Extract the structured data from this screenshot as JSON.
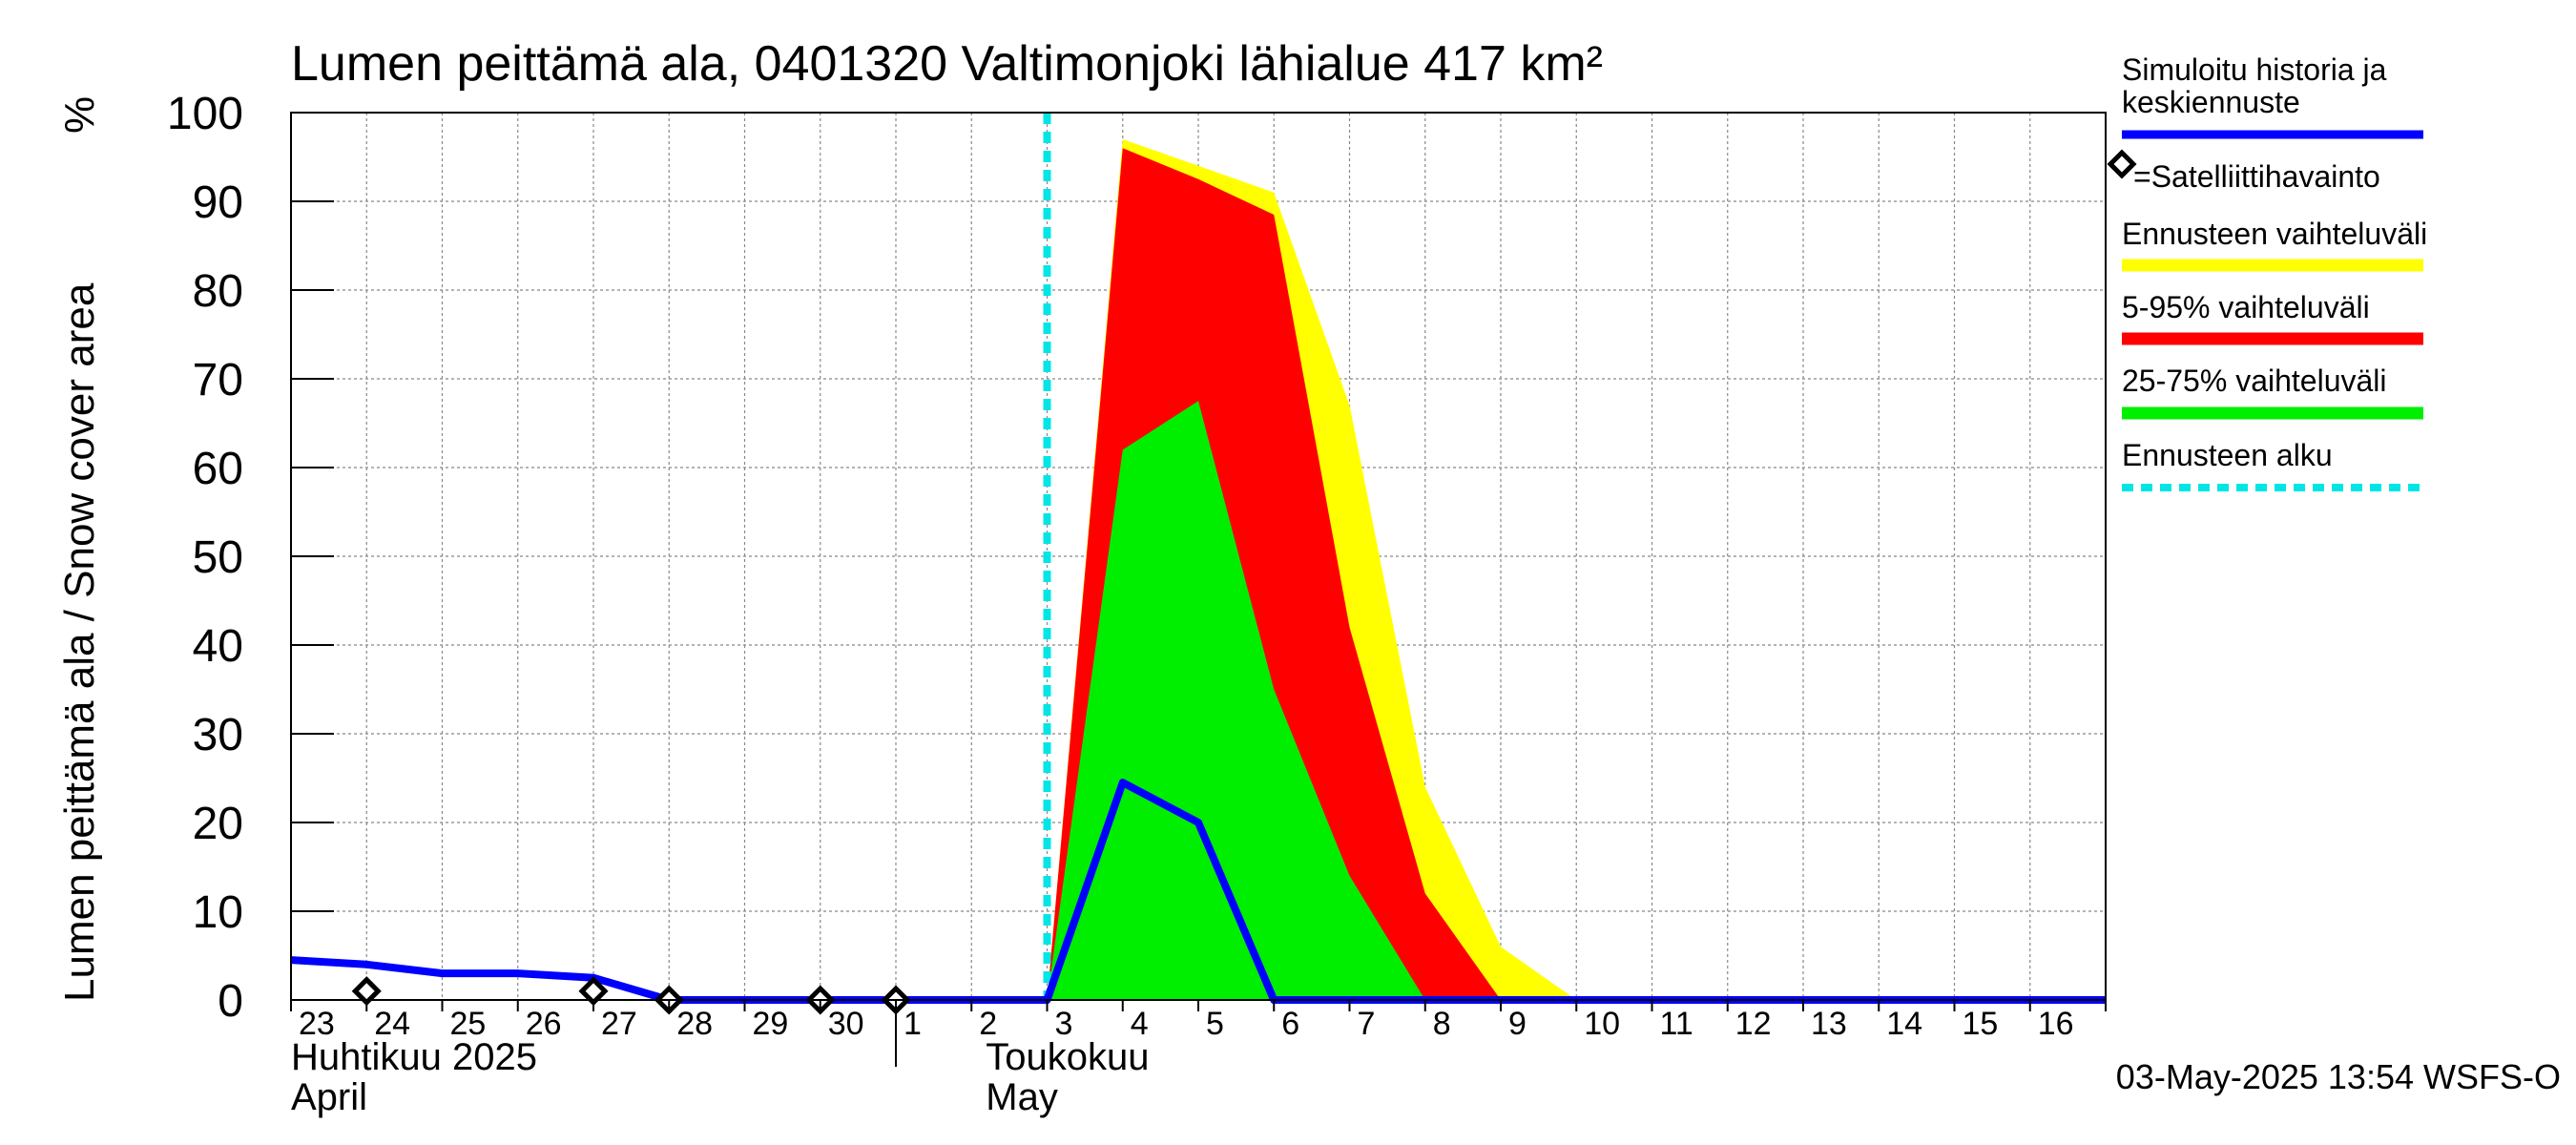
{
  "chart_data": {
    "type": "area",
    "title": "Lumen peittämä ala, 0401320 Valtimonjoki lähialue 417 km²",
    "ylabel": "Lumen peittämä ala / Snow cover area",
    "yunit": "%",
    "ylim": [
      0,
      100
    ],
    "yticks": [
      0,
      10,
      20,
      30,
      40,
      50,
      60,
      70,
      80,
      90,
      100
    ],
    "xlim": [
      "2025-04-23",
      "2025-05-17"
    ],
    "x_tick_labels": [
      "23",
      "24",
      "25",
      "26",
      "27",
      "28",
      "29",
      "30",
      "1",
      "2",
      "3",
      "4",
      "5",
      "6",
      "7",
      "8",
      "9",
      "10",
      "11",
      "12",
      "13",
      "14",
      "15",
      "16"
    ],
    "month_labels": [
      {
        "fi": "Huhtikuu  2025",
        "en": "April"
      },
      {
        "fi": "Toukokuu",
        "en": "May"
      }
    ],
    "grid": true,
    "legend_position": "right",
    "forecast_start": "2025-05-03",
    "series": [
      {
        "name": "Ennusteen vaihteluväli",
        "color": "#ffff00",
        "kind": "band",
        "x": [
          "2025-05-03",
          "2025-05-04",
          "2025-05-05",
          "2025-05-06",
          "2025-05-07",
          "2025-05-08",
          "2025-05-09",
          "2025-05-10",
          "2025-05-17"
        ],
        "lower": [
          0,
          0,
          0,
          0,
          0,
          0,
          0,
          0,
          0
        ],
        "upper": [
          0,
          97,
          94,
          91,
          67,
          24,
          6,
          0,
          0
        ]
      },
      {
        "name": "5-95% vaihteluväli",
        "color": "#ff0000",
        "kind": "band",
        "x": [
          "2025-05-03",
          "2025-05-04",
          "2025-05-05",
          "2025-05-06",
          "2025-05-07",
          "2025-05-08",
          "2025-05-09",
          "2025-05-10"
        ],
        "lower": [
          0,
          0,
          0,
          0,
          0,
          0,
          0,
          0
        ],
        "upper": [
          0,
          96,
          92.5,
          88.5,
          42,
          12,
          0,
          0
        ]
      },
      {
        "name": "25-75% vaihteluväli",
        "color": "#00ee00",
        "kind": "band",
        "x": [
          "2025-05-03",
          "2025-05-04",
          "2025-05-05",
          "2025-05-06",
          "2025-05-07",
          "2025-05-08",
          "2025-05-09"
        ],
        "lower": [
          0,
          0,
          0,
          0,
          0,
          0,
          0
        ],
        "upper": [
          0,
          62,
          67.5,
          35,
          14,
          0,
          0
        ]
      },
      {
        "name": "Simuloitu historia ja keskiennuste",
        "color": "#0000ff",
        "kind": "line",
        "x": [
          "2025-04-23",
          "2025-04-24",
          "2025-04-25",
          "2025-04-26",
          "2025-04-27",
          "2025-04-28",
          "2025-04-29",
          "2025-04-30",
          "2025-05-01",
          "2025-05-02",
          "2025-05-03",
          "2025-05-04",
          "2025-05-05",
          "2025-05-06",
          "2025-05-10",
          "2025-05-17"
        ],
        "y": [
          4.5,
          4,
          3,
          3,
          2.5,
          0,
          0,
          0,
          0,
          0,
          0,
          24.5,
          20,
          0,
          0,
          0
        ]
      },
      {
        "name": "Satelliittihavainto",
        "color": "#000000",
        "kind": "scatter",
        "x": [
          "2025-04-24",
          "2025-04-27",
          "2025-04-28",
          "2025-04-30",
          "2025-05-01"
        ],
        "y": [
          1,
          1,
          0,
          0,
          0
        ]
      }
    ]
  },
  "legend": {
    "items": [
      {
        "label": "Simuloitu historia ja\nkeskiennuste",
        "color": "#0000ff",
        "style": "line"
      },
      {
        "label": "=Satelliittihavainto",
        "color": "#000000",
        "style": "marker"
      },
      {
        "label": "Ennusteen vaihteluväli",
        "color": "#ffff00",
        "style": "band"
      },
      {
        "label": "5-95% vaihteluväli",
        "color": "#ff0000",
        "style": "band"
      },
      {
        "label": "25-75% vaihteluväli",
        "color": "#00ee00",
        "style": "band"
      },
      {
        "label": "Ennusteen alku",
        "color": "#00e5e5",
        "style": "dashed"
      }
    ]
  },
  "footer": {
    "timestamp": "03-May-2025 13:54 WSFS-O"
  }
}
